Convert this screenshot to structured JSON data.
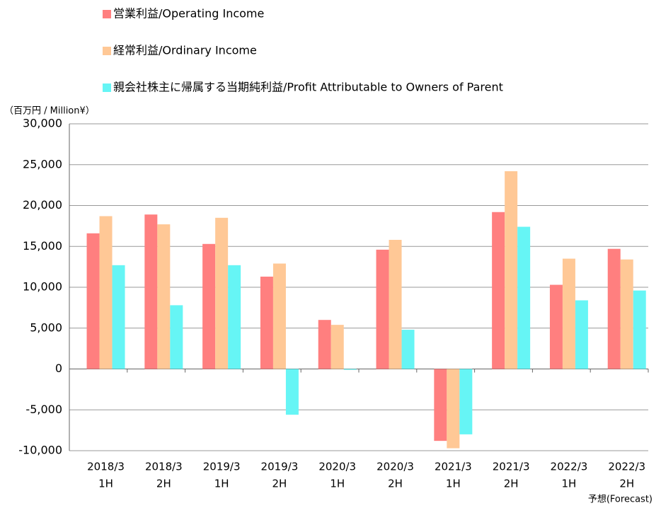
{
  "chart_data": {
    "type": "bar",
    "unit_label": "（百万円 / Million¥）",
    "annotation": "予想(Forecast)",
    "categories": [
      [
        "2018/3",
        "1H"
      ],
      [
        "2018/3",
        "2H"
      ],
      [
        "2019/3",
        "1H"
      ],
      [
        "2019/3",
        "2H"
      ],
      [
        "2020/3",
        "1H"
      ],
      [
        "2020/3",
        "2H"
      ],
      [
        "2021/3",
        "1H"
      ],
      [
        "2021/3",
        "2H"
      ],
      [
        "2022/3",
        "1H"
      ],
      [
        "2022/3",
        "2H"
      ]
    ],
    "series": [
      {
        "name": "営業利益/Operating Income",
        "color": "#ff7f7f",
        "values": [
          16600,
          18900,
          15300,
          11300,
          6000,
          14600,
          -8800,
          19200,
          10300,
          14700
        ]
      },
      {
        "name": "経常利益/Ordinary Income",
        "color": "#ffc896",
        "values": [
          18700,
          17700,
          18500,
          12900,
          5400,
          15800,
          -9700,
          24200,
          13500,
          13400
        ]
      },
      {
        "name": "親会社株主に帰属する当期純利益/Profit Attributable to Owners of Parent",
        "color": "#66f5f5",
        "values": [
          12700,
          7800,
          12700,
          -5600,
          -100,
          4800,
          -8000,
          17400,
          8400,
          9600
        ]
      }
    ],
    "ylim": [
      -10000,
      30000
    ],
    "yticks": [
      {
        "value": -10000,
        "label": "-10,000"
      },
      {
        "value": -5000,
        "label": "-5,000"
      },
      0,
      {
        "value": 5000,
        "label": "5,000"
      },
      {
        "value": 10000,
        "label": "10,000"
      },
      {
        "value": 15000,
        "label": "15,000"
      },
      {
        "value": 20000,
        "label": "20,000"
      },
      {
        "value": 25000,
        "label": "25,000"
      },
      {
        "value": 30000,
        "label": "30,000"
      }
    ],
    "negative_tick_color": "#ff0000",
    "grid": true,
    "legend": "top"
  }
}
